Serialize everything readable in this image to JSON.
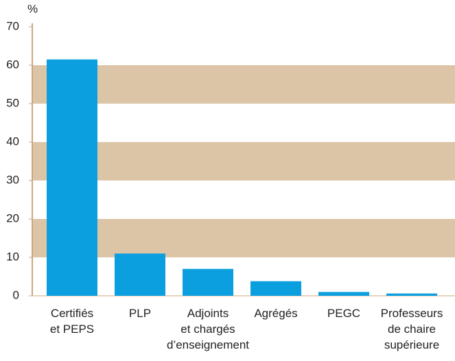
{
  "chart_data": {
    "type": "bar",
    "y_label": "%",
    "categories": [
      [
        "Certifiés",
        "et PEPS"
      ],
      [
        "PLP"
      ],
      [
        "Adjoints",
        "et chargés",
        "d’enseignement"
      ],
      [
        "Agrégés"
      ],
      [
        "PEGC"
      ],
      [
        "Professeurs",
        "de chaire",
        "supérieure"
      ]
    ],
    "values": [
      61.5,
      11,
      7,
      3.8,
      1,
      0.6
    ],
    "color": "#0c9fdf",
    "ylim": [
      0,
      70
    ],
    "yticks": [
      0,
      10,
      20,
      30,
      40,
      50,
      60,
      70
    ],
    "grid_bands": true,
    "band_color": "#dcc5a6",
    "axis_color": "#c9a67c"
  }
}
